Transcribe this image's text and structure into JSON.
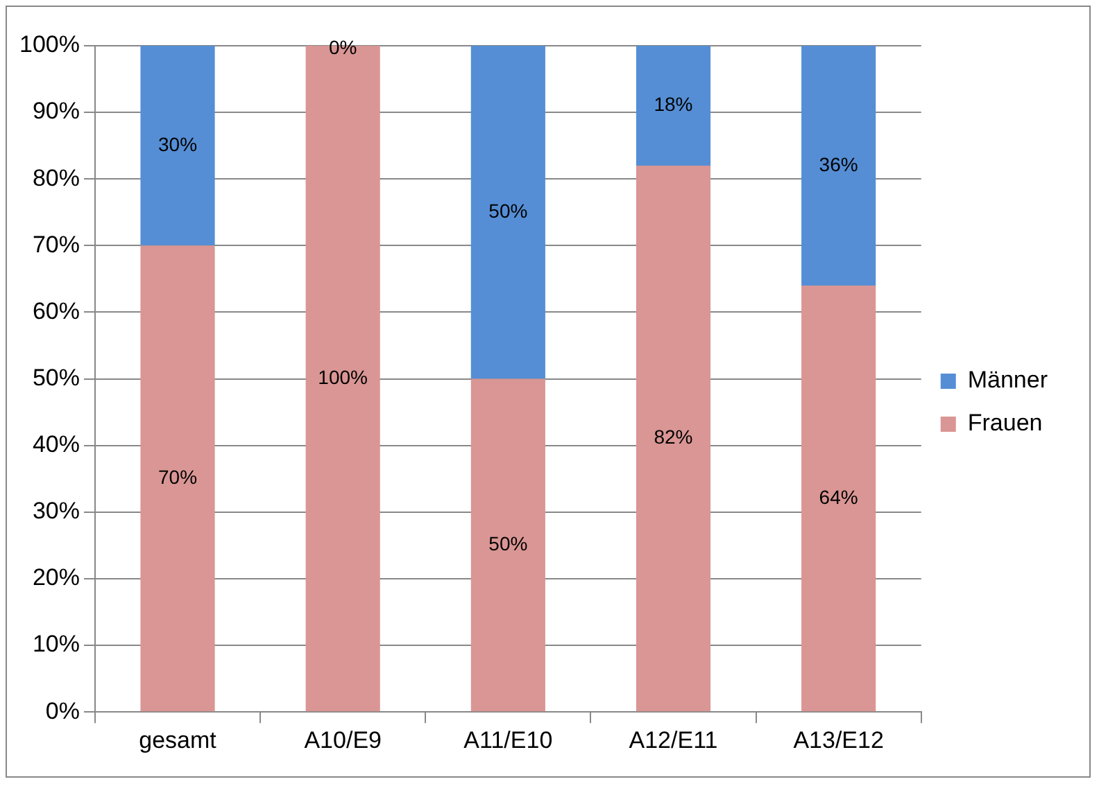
{
  "chart_data": {
    "type": "bar",
    "stacked": true,
    "categories": [
      "gesamt",
      "A10/E9",
      "A11/E10",
      "A12/E11",
      "A13/E12"
    ],
    "series": [
      {
        "name": "Frauen",
        "color": "#d99694",
        "values": [
          70,
          100,
          50,
          82,
          64
        ],
        "value_labels": [
          "70%",
          "100%",
          "50%",
          "82%",
          "64%"
        ]
      },
      {
        "name": "Männer",
        "color": "#558ed5",
        "values": [
          30,
          0,
          50,
          18,
          36
        ],
        "value_labels": [
          "30%",
          "0%",
          "50%",
          "18%",
          "36%"
        ]
      }
    ],
    "ylim": [
      0,
      100
    ],
    "yticks": [
      {
        "value": 0,
        "label": "0%"
      },
      {
        "value": 10,
        "label": "10%"
      },
      {
        "value": 20,
        "label": "20%"
      },
      {
        "value": 30,
        "label": "30%"
      },
      {
        "value": 40,
        "label": "40%"
      },
      {
        "value": 50,
        "label": "50%"
      },
      {
        "value": 60,
        "label": "60%"
      },
      {
        "value": 70,
        "label": "70%"
      },
      {
        "value": 80,
        "label": "80%"
      },
      {
        "value": 90,
        "label": "90%"
      },
      {
        "value": 100,
        "label": "100%"
      }
    ],
    "grid": "y",
    "legend": "right"
  }
}
